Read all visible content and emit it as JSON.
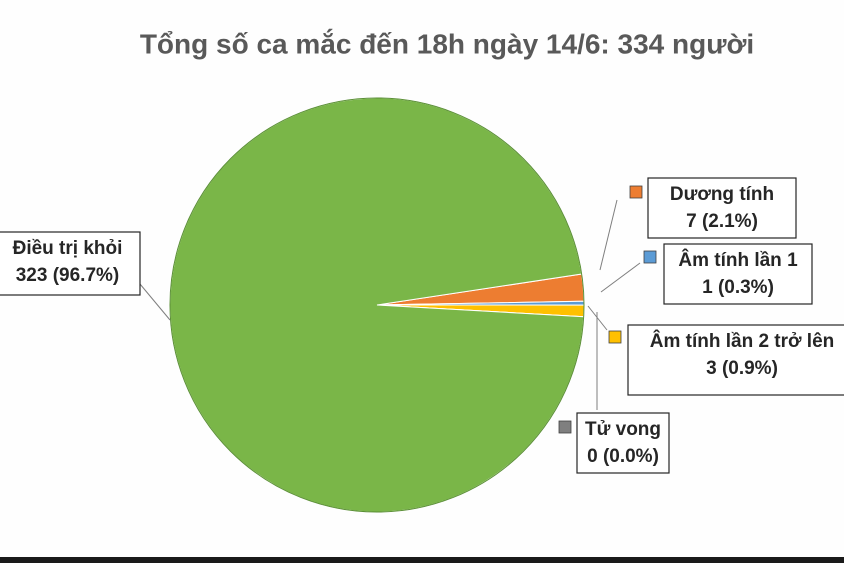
{
  "chart_data": {
    "type": "pie",
    "title": "Tổng số ca mắc đến 18h ngày 14/6: 334 người",
    "categories": [
      "Dương tính",
      "Âm tính lần 1",
      "Âm tính lần 2 trở lên",
      "Tử vong",
      "Điều trị khỏi"
    ],
    "values": [
      7,
      1,
      3,
      0,
      323
    ],
    "value_labels": [
      "7 (2.1%)",
      "1 (0.3%)",
      "3 (0.9%)",
      "0 (0.0%)",
      "323 (96.7%)"
    ],
    "colors": [
      "#ed7d31",
      "#5b9bd5",
      "#ffc000",
      "#7f7f7f",
      "#7ab648"
    ]
  }
}
